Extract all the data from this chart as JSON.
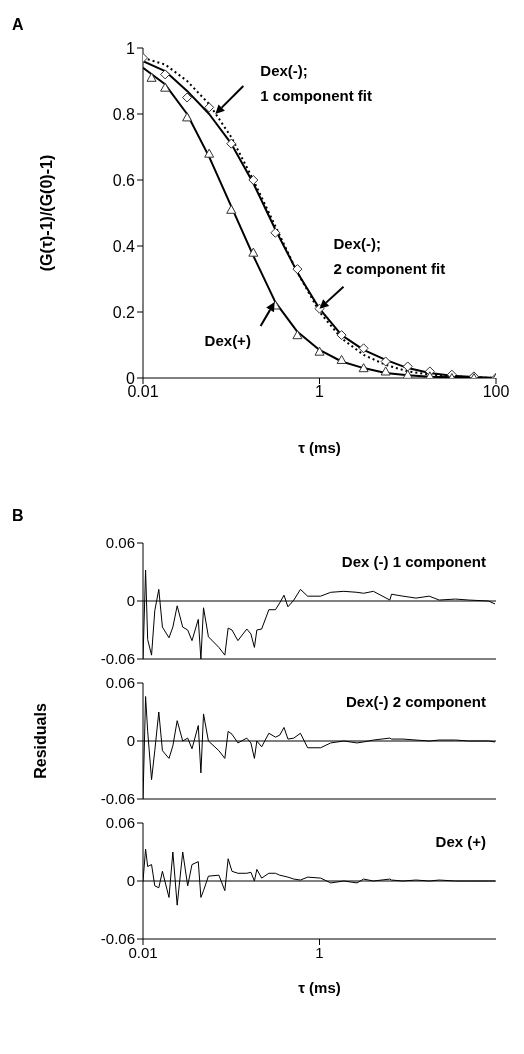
{
  "chart_data": [
    {
      "type": "scatter",
      "title": "A",
      "xlabel": "τ (ms)",
      "ylabel": "(G(τ)-1)/(G(0)-1)",
      "log": "x",
      "xlim": [
        0.01,
        100
      ],
      "xticks": [
        0.01,
        1,
        100
      ],
      "ylim": [
        0,
        1
      ],
      "yticks": [
        0,
        0.2,
        0.4,
        0.6,
        0.8,
        1
      ],
      "x": [
        0.01,
        0.0178,
        0.0316,
        0.0562,
        0.1,
        0.178,
        0.316,
        0.562,
        1,
        1.78,
        3.16,
        5.62,
        10,
        17.8,
        31.6,
        56.2,
        100
      ],
      "series": [
        {
          "type": "scatter",
          "marker": "diamond",
          "color": "#333333",
          "values": [
            0.97,
            0.92,
            0.85,
            0.82,
            0.71,
            0.6,
            0.44,
            0.33,
            0.21,
            0.13,
            0.09,
            0.05,
            0.035,
            0.02,
            0.01,
            0.005,
            0
          ]
        },
        {
          "type": "scatter",
          "marker": "triangle",
          "color": "#333333",
          "x": [
            0.0125,
            0.0178,
            0.0316,
            0.0562,
            0.1,
            0.178,
            0.316,
            0.562,
            1,
            1.78,
            3.16,
            5.62,
            10,
            17.8,
            31.6,
            56.2,
            100
          ],
          "values": [
            0.91,
            0.88,
            0.79,
            0.68,
            0.51,
            0.38,
            0.22,
            0.13,
            0.08,
            0.055,
            0.03,
            0.02,
            0.01,
            0.005,
            0,
            0,
            0
          ]
        },
        {
          "type": "line",
          "line_style": "dotted",
          "color": "#000000",
          "values": [
            0.97,
            0.95,
            0.9,
            0.83,
            0.73,
            0.6,
            0.46,
            0.32,
            0.2,
            0.12,
            0.07,
            0.04,
            0.02,
            0.01,
            0.005,
            0.002,
            0
          ]
        },
        {
          "type": "line",
          "line_style": "solid",
          "color": "#000000",
          "values": [
            0.96,
            0.93,
            0.87,
            0.8,
            0.71,
            0.59,
            0.45,
            0.32,
            0.21,
            0.13,
            0.085,
            0.055,
            0.03,
            0.015,
            0.007,
            0.003,
            0
          ]
        },
        {
          "type": "line",
          "line_style": "solid",
          "color": "#000000",
          "values": [
            0.94,
            0.89,
            0.8,
            0.67,
            0.52,
            0.37,
            0.23,
            0.14,
            0.085,
            0.05,
            0.03,
            0.015,
            0.008,
            0.004,
            0.002,
            0.001,
            0
          ]
        }
      ],
      "annotations": [
        {
          "text": "Dex(-);\n1 component fit",
          "x": 0.066,
          "y": 0.8
        },
        {
          "text": "Dex(-);\n2 component fit",
          "x": 1,
          "y": 0.21
        },
        {
          "text": "Dex(+)",
          "x": 0.31,
          "y": 0.23
        }
      ]
    },
    {
      "type": "line",
      "title": "B",
      "log": "x",
      "xlim": [
        0.01,
        100
      ],
      "xticks": [
        0.01,
        1
      ],
      "ylim": [
        -0.06,
        0.06
      ],
      "yticks": [
        -0.06,
        0,
        0.06
      ],
      "tick_labels": "y",
      "x": [
        0.01,
        0.0107,
        0.0113,
        0.0125,
        0.0136,
        0.0151,
        0.0166,
        0.0197,
        0.0218,
        0.0244,
        0.0282,
        0.0321,
        0.0359,
        0.0423,
        0.0453,
        0.0485,
        0.0551,
        0.0724,
        0.0846,
        0.0922,
        0.102,
        0.119,
        0.15,
        0.167,
        0.183,
        0.195,
        0.221,
        0.267,
        0.317,
        0.354,
        0.396,
        0.439,
        0.512,
        0.608,
        0.734,
        1.03,
        1.34,
        1.89,
        2.66,
        3.16,
        4.08,
        6.27,
        6.55,
        8.83,
        12.4,
        17.5,
        22.7,
        34.8,
        49.1,
        82,
        97.5
      ],
      "series": [
        {
          "color": "#000000",
          "values": [
            -0.06,
            0.032,
            -0.04,
            -0.056,
            -0.01,
            0.012,
            -0.027,
            -0.038,
            -0.027,
            -0.005,
            -0.027,
            -0.03,
            -0.041,
            -0.019,
            -0.06,
            -0.007,
            -0.037,
            -0.048,
            -0.056,
            -0.028,
            -0.03,
            -0.041,
            -0.029,
            -0.034,
            -0.048,
            -0.03,
            -0.029,
            -0.009,
            -0.009,
            -0.002,
            0.006,
            -0.006,
            0.001,
            0.012,
            0.005,
            0.005,
            0.009,
            0.01,
            0.009,
            0.008,
            0.01,
            0.001,
            0.007,
            0.005,
            0.003,
            0.005,
            0.001,
            0.002,
            0.001,
            0,
            -0.003
          ]
        }
      ],
      "ref_lines": [
        {
          "axis": "y",
          "value": 0
        }
      ],
      "annotations": [
        "Dex (-) 1 component"
      ]
    },
    {
      "type": "line",
      "ylabel": "Residuals",
      "log": "x",
      "xlim": [
        0.01,
        100
      ],
      "xticks": [
        0.01,
        1
      ],
      "ylim": [
        -0.06,
        0.06
      ],
      "yticks": [
        -0.06,
        0,
        0.06
      ],
      "tick_labels": "y",
      "x": [
        0.01,
        0.0107,
        0.0113,
        0.0125,
        0.0136,
        0.0151,
        0.0166,
        0.0197,
        0.0218,
        0.0244,
        0.0282,
        0.0321,
        0.0359,
        0.0423,
        0.0453,
        0.0485,
        0.0551,
        0.0724,
        0.0846,
        0.0922,
        0.102,
        0.119,
        0.15,
        0.167,
        0.183,
        0.195,
        0.221,
        0.267,
        0.317,
        0.354,
        0.396,
        0.439,
        0.512,
        0.608,
        0.734,
        1.03,
        1.34,
        1.89,
        2.66,
        3.16,
        4.08,
        6.27,
        6.55,
        8.83,
        12.4,
        17.5,
        22.7,
        34.8,
        49.1,
        82,
        97.5
      ],
      "series": [
        {
          "color": "#000000",
          "values": [
            -0.06,
            0.046,
            0.01,
            -0.04,
            -0.01,
            0.03,
            -0.01,
            -0.018,
            -0.005,
            0.021,
            0,
            0.003,
            -0.008,
            0.016,
            -0.033,
            0.028,
            0,
            -0.01,
            -0.018,
            0.01,
            0.007,
            -0.002,
            0.003,
            -0.002,
            -0.018,
            0,
            -0.006,
            0.008,
            0.004,
            0.006,
            0.014,
            0.002,
            0.003,
            0.008,
            -0.007,
            -0.007,
            -0.002,
            0,
            -0.002,
            -0.001,
            0.001,
            0.003,
            0.002,
            0.002,
            0.001,
            0,
            0.001,
            0.001,
            0,
            0,
            -0.001
          ]
        }
      ],
      "ref_lines": [
        {
          "axis": "y",
          "value": 0
        }
      ],
      "annotations": [
        "Dex(-) 2 component"
      ]
    },
    {
      "type": "line",
      "xlabel": "τ (ms)",
      "log": "x",
      "xlim": [
        0.01,
        100
      ],
      "xticks": [
        0.01,
        1
      ],
      "ylim": [
        -0.06,
        0.06
      ],
      "yticks": [
        -0.06,
        0,
        0.06
      ],
      "x": [
        0.01,
        0.0107,
        0.0113,
        0.0125,
        0.0136,
        0.0151,
        0.0166,
        0.0197,
        0.0218,
        0.0244,
        0.0282,
        0.0321,
        0.0359,
        0.0423,
        0.0453,
        0.0485,
        0.0551,
        0.0724,
        0.0846,
        0.0922,
        0.102,
        0.119,
        0.15,
        0.167,
        0.183,
        0.195,
        0.221,
        0.267,
        0.317,
        0.354,
        0.396,
        0.439,
        0.512,
        0.608,
        0.734,
        1.03,
        1.34,
        1.89,
        2.66,
        3.16,
        4.08,
        6.27,
        6.55,
        8.83,
        12.4,
        17.5,
        22.7,
        34.8,
        49.1,
        82,
        97.5
      ],
      "series": [
        {
          "color": "#000000",
          "values": [
            0,
            0.033,
            0.015,
            0.017,
            -0.005,
            -0.007,
            0.01,
            -0.017,
            0.03,
            -0.025,
            0.03,
            -0.005,
            0.017,
            0.02,
            -0.017,
            -0.01,
            0.005,
            0.006,
            -0.01,
            0.023,
            0.01,
            0.008,
            0.008,
            0.009,
            0,
            0.012,
            0.003,
            0.008,
            0.008,
            0.006,
            0.005,
            0.004,
            0.002,
            0.001,
            0.004,
            0.003,
            -0.002,
            0,
            -0.002,
            0.002,
            0,
            0.002,
            0.001,
            0,
            0.001,
            0,
            0.001,
            0,
            0,
            0,
            0
          ]
        }
      ],
      "ref_lines": [
        {
          "axis": "y",
          "value": 0
        }
      ],
      "annotations": [
        "Dex (+)"
      ]
    }
  ]
}
